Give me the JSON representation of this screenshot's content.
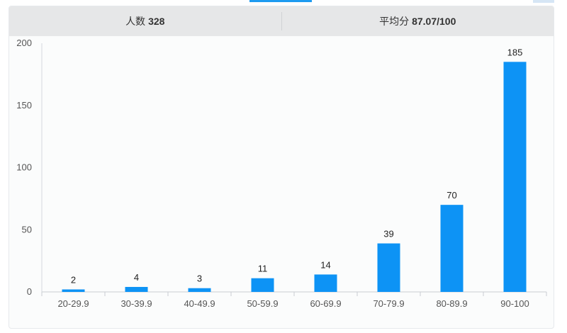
{
  "stats": {
    "count_label": "人数",
    "count_value": "328",
    "avg_label": "平均分",
    "avg_value": "87.07/100"
  },
  "colors": {
    "bar": "#0d93f5",
    "accent": "#1e9bf0"
  },
  "chart_data": {
    "type": "bar",
    "categories": [
      "20-29.9",
      "30-39.9",
      "40-49.9",
      "50-59.9",
      "60-69.9",
      "70-79.9",
      "80-89.9",
      "90-100"
    ],
    "values": [
      2,
      4,
      3,
      11,
      14,
      39,
      70,
      185
    ],
    "ylim": [
      0,
      200
    ],
    "yticks": [
      0,
      50,
      100,
      150,
      200
    ],
    "title": "",
    "xlabel": "",
    "ylabel": "",
    "grid": false,
    "data_labels": true
  }
}
